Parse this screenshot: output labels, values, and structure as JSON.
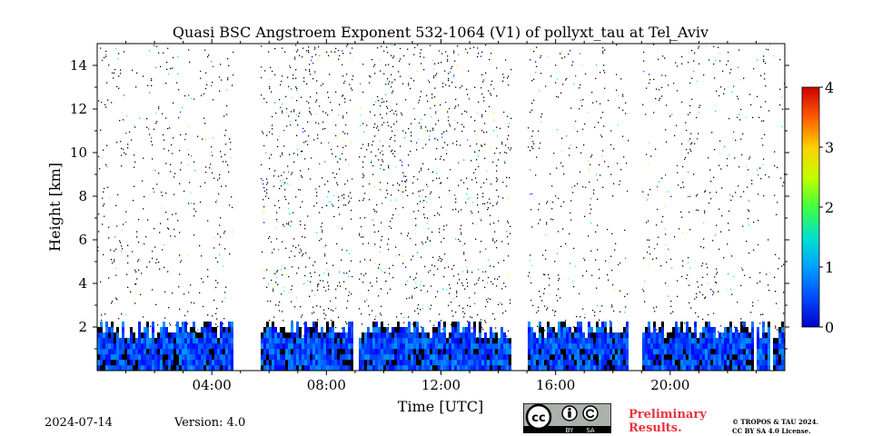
{
  "chart_data": {
    "type": "heatmap",
    "title": "Quasi BSC Angstroem Exponent 532-1064 (V1) of pollyxt_tau at Tel_Aviv",
    "xlabel": "Time [UTC]",
    "ylabel": "Height [km]",
    "xlim": [
      "00:00",
      "24:00"
    ],
    "ylim": [
      0,
      15
    ],
    "x_ticks": [
      "04:00",
      "08:00",
      "12:00",
      "16:00",
      "20:00"
    ],
    "y_ticks": [
      "2",
      "4",
      "6",
      "8",
      "10",
      "12",
      "14"
    ],
    "colorbar": {
      "min": 0,
      "max": 4,
      "ticks": [
        "0",
        "1",
        "2",
        "3",
        "4"
      ],
      "colormap": "jet"
    },
    "data_gaps_utc": [
      [
        "04:45",
        "05:00"
      ],
      [
        "05:05",
        "05:45"
      ],
      [
        "08:55",
        "09:10"
      ],
      [
        "14:25",
        "15:00"
      ],
      [
        "18:35",
        "19:00"
      ],
      [
        "22:55",
        "23:00"
      ],
      [
        "23:30",
        "23:35"
      ]
    ],
    "boundary_layer_top_km": 2.0,
    "dominant_value_below_2km": 0.8,
    "grid": false
  },
  "footer": {
    "date": "2024-07-14",
    "version": "Version: 4.0",
    "preliminary_line1": "Preliminary",
    "preliminary_line2": "Results.",
    "copyright_line1": "© TROPOS & TAU 2024.",
    "copyright_line2": "CC BY SA 4.0 License.",
    "cc_label": "cc",
    "by_label": "BY",
    "sa_label": "SA"
  },
  "colors": {
    "preliminary": "#e8323c"
  }
}
